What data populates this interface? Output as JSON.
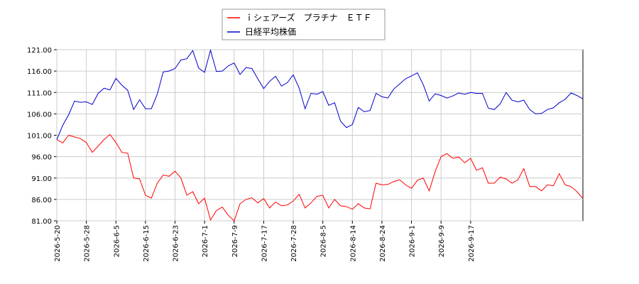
{
  "chart_data": {
    "type": "line",
    "legend_position": "top-center",
    "grid": true,
    "ylim": [
      81.0,
      121.0
    ],
    "y_ticks": [
      "121.00",
      "116.00",
      "111.00",
      "106.00",
      "101.00",
      "96.00",
      "91.00",
      "86.00",
      "81.00"
    ],
    "x_ticks": [
      "2026-5-20",
      "2026-5-28",
      "2026-6-5",
      "2026-6-15",
      "2026-6-23",
      "2026-7-1",
      "2026-7-9",
      "2026-7-17",
      "2026-7-28",
      "2026-8-5",
      "2026-8-14",
      "2026-8-24",
      "2026-9-1",
      "2026-9-9",
      "2026-9-17"
    ],
    "x_tick_index": [
      0,
      5,
      10,
      15,
      20,
      25,
      30,
      35,
      40,
      45,
      50,
      55,
      60,
      65,
      70
    ],
    "series": [
      {
        "name": "ｉシェアーズ　プラチナ　ＥＴＦ",
        "color": "#ff0000",
        "values": [
          100.0,
          99.2,
          101.0,
          100.6,
          100.2,
          99.3,
          97.0,
          98.5,
          100.0,
          101.2,
          99.3,
          97.0,
          96.8,
          91.0,
          90.8,
          87.0,
          86.3,
          89.8,
          91.7,
          91.4,
          92.6,
          91.0,
          87.0,
          87.8,
          85.0,
          86.3,
          81.2,
          83.4,
          84.2,
          82.3,
          81.0,
          85.0,
          86.0,
          86.4,
          85.2,
          86.2,
          84.0,
          85.4,
          84.5,
          84.7,
          85.6,
          87.2,
          84.0,
          85.2,
          86.7,
          87.0,
          84.0,
          86.0,
          84.5,
          84.3,
          83.7,
          85.0,
          84.0,
          83.8,
          89.8,
          89.4,
          89.5,
          90.2,
          90.6,
          89.4,
          88.6,
          90.5,
          91.0,
          88.0,
          92.5,
          96.0,
          96.7,
          95.6,
          95.9,
          94.6,
          95.6,
          92.8,
          93.4,
          89.8,
          89.8,
          91.2,
          90.8,
          89.8,
          90.6,
          93.2,
          89.0,
          89.0,
          88.0,
          89.4,
          89.2,
          92.0,
          89.4,
          89.0,
          87.8,
          86.2
        ]
      },
      {
        "name": "日経平均株価",
        "color": "#0000cc",
        "values": [
          100.0,
          103.3,
          105.8,
          109.0,
          108.7,
          108.8,
          108.2,
          110.8,
          112.0,
          111.6,
          114.3,
          112.7,
          111.5,
          107.0,
          109.3,
          107.2,
          107.2,
          110.6,
          115.8,
          116.0,
          116.6,
          118.6,
          118.9,
          120.8,
          116.7,
          115.7,
          120.9,
          115.9,
          116.0,
          117.2,
          117.9,
          115.2,
          116.8,
          116.6,
          114.2,
          111.9,
          113.6,
          114.8,
          112.5,
          113.3,
          115.1,
          112.0,
          107.2,
          110.8,
          110.6,
          111.2,
          108.0,
          108.6,
          104.3,
          102.8,
          103.5,
          107.5,
          106.5,
          106.8,
          110.8,
          110.0,
          109.7,
          111.8,
          113.0,
          114.2,
          114.9,
          115.6,
          112.8,
          109.0,
          110.7,
          110.3,
          109.7,
          110.2,
          110.9,
          110.6,
          111.0,
          110.8,
          110.8,
          107.3,
          107.0,
          108.3,
          111.0,
          109.2,
          108.8,
          109.2,
          107.0,
          106.0,
          106.1,
          107.0,
          107.4,
          108.6,
          109.4,
          110.9,
          110.3,
          109.5
        ]
      }
    ]
  }
}
